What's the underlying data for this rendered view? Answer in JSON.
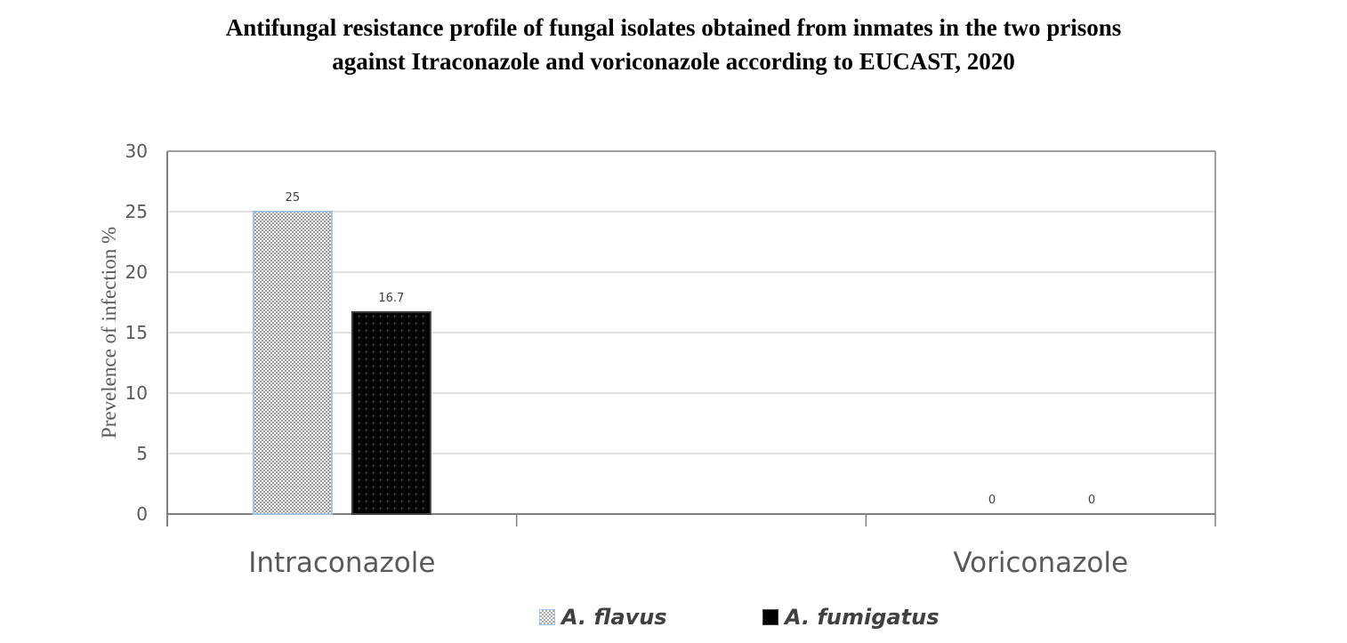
{
  "chart_data": {
    "type": "bar",
    "title_lines": [
      "Antifungal resistance profile of fungal isolates obtained from inmates in the two prisons",
      "against  Itraconazole and voriconazole according to EUCAST, 2020"
    ],
    "categories": [
      "Intraconazole",
      "",
      "Voriconazole"
    ],
    "series": [
      {
        "name": "A. flavus",
        "values": [
          25,
          null,
          0
        ],
        "labels": [
          "25",
          "",
          "0"
        ],
        "color": "#d9d9d9",
        "border": "#9dc3e6"
      },
      {
        "name": "A. fumigatus",
        "values": [
          16.7,
          null,
          0
        ],
        "labels": [
          "16.7",
          "",
          "0"
        ],
        "color": "#000000",
        "border": "#404040"
      }
    ],
    "ylabel": "Prevelence of infection %",
    "xlabel": "",
    "ylim": [
      0,
      30
    ],
    "yticks": [
      "0",
      "5",
      "10",
      "15",
      "20",
      "25",
      "30"
    ],
    "grid": true,
    "legend_position": "bottom"
  }
}
